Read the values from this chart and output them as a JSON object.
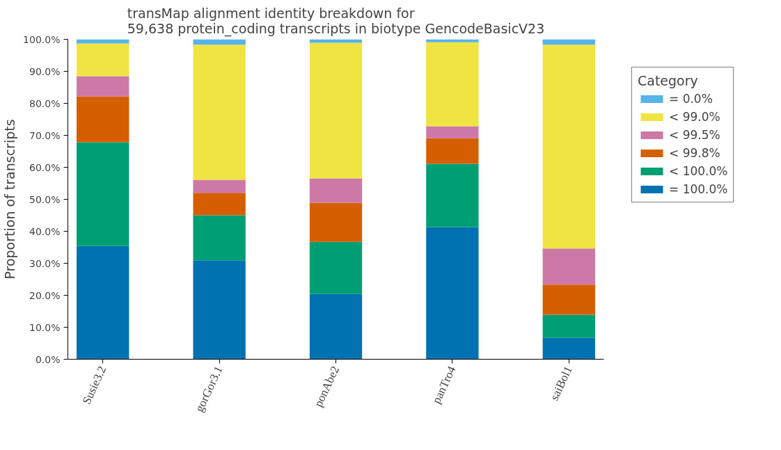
{
  "chart_data": {
    "type": "bar",
    "stacked": true,
    "title": "transMap alignment identity breakdown for\n59,638 protein_coding transcripts in biotype GencodeBasicV23",
    "ylabel": "Proportion of transcripts",
    "legend_title": "Category",
    "legend": "right",
    "grid": false,
    "categories": [
      "Susie3.2",
      "gorGor3.1",
      "ponAbe2",
      "panTro4",
      "saiBol1"
    ],
    "ylim": [
      0,
      100
    ],
    "yticks": [
      {
        "value": 0,
        "label": "0.0%"
      },
      {
        "value": 10,
        "label": "10.0%"
      },
      {
        "value": 20,
        "label": "20.0%"
      },
      {
        "value": 30,
        "label": "30.0%"
      },
      {
        "value": 40,
        "label": "40.0%"
      },
      {
        "value": 50,
        "label": "50.0%"
      },
      {
        "value": 60,
        "label": "60.0%"
      },
      {
        "value": 70,
        "label": "70.0%"
      },
      {
        "value": 80,
        "label": "80.0%"
      },
      {
        "value": 90,
        "label": "90.0%"
      },
      {
        "value": 100,
        "label": "100.0%"
      }
    ],
    "series": [
      {
        "name": "= 100.0%",
        "color": "#0072b2",
        "values": [
          35.4,
          30.9,
          20.4,
          41.3,
          6.7
        ]
      },
      {
        "name": "< 100.0%",
        "color": "#009e73",
        "values": [
          32.4,
          14.1,
          16.3,
          19.8,
          7.2
        ]
      },
      {
        "name": "< 99.8%",
        "color": "#d55e00",
        "values": [
          14.4,
          7.0,
          12.2,
          8.0,
          9.4
        ]
      },
      {
        "name": "< 99.5%",
        "color": "#cc79a7",
        "values": [
          6.3,
          4.1,
          7.6,
          3.7,
          11.3
        ]
      },
      {
        "name": "< 99.0%",
        "color": "#f0e442",
        "values": [
          10.2,
          42.2,
          42.4,
          26.3,
          63.7
        ]
      },
      {
        "name": "= 0.0%",
        "color": "#56b4e9",
        "values": [
          1.3,
          1.7,
          1.1,
          0.9,
          1.7
        ]
      }
    ]
  }
}
